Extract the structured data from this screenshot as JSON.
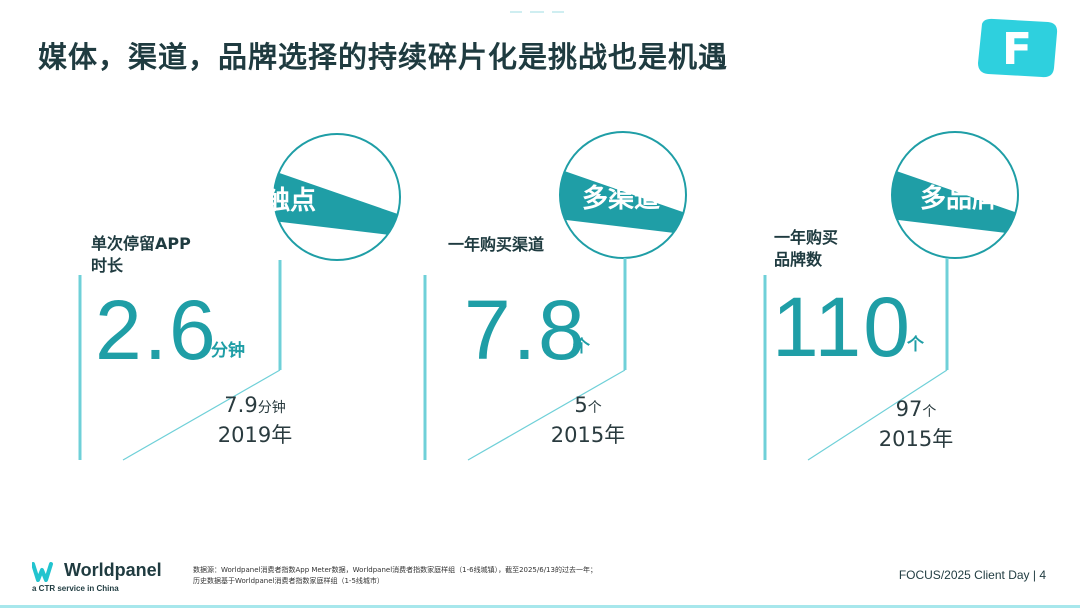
{
  "title": "媒体，渠道，品牌选择的持续碎片化是挑战也是机遇",
  "logo_letter": "F",
  "colors": {
    "teal": "#1f9ea6",
    "light_teal": "#6fd0d8",
    "dark": "#1f3b40"
  },
  "panels": [
    {
      "tag": "多触点",
      "metric": [
        "单次停留APP",
        "时长"
      ],
      "value": "2.6",
      "unit": "分钟",
      "past_value": "7.9",
      "past_unit": "分钟",
      "past_year": "2019年"
    },
    {
      "tag": "多渠道",
      "metric": [
        "一年购买渠道"
      ],
      "value": "7.8",
      "unit": "个",
      "past_value": "5",
      "past_unit": "个",
      "past_year": "2015年"
    },
    {
      "tag": "多品牌",
      "metric": [
        "一年购买",
        "品牌数"
      ],
      "value": "110",
      "unit": "个",
      "past_value": "97",
      "past_unit": "个",
      "past_year": "2015年"
    }
  ],
  "footer": {
    "brand_name": "Worldpanel",
    "brand_sub": "a CTR service in China",
    "source_lines": [
      "数据源：Worldpanel消费者指数App Meter数据，Worldpanel消费者指数家庭样组（1-6线城镇），截至2025/6/13的过去一年；",
      "历史数据基于Worldpanel消费者指数家庭样组（1-5线城市）"
    ],
    "page_label": "FOCUS/2025 Client Day | 4"
  }
}
